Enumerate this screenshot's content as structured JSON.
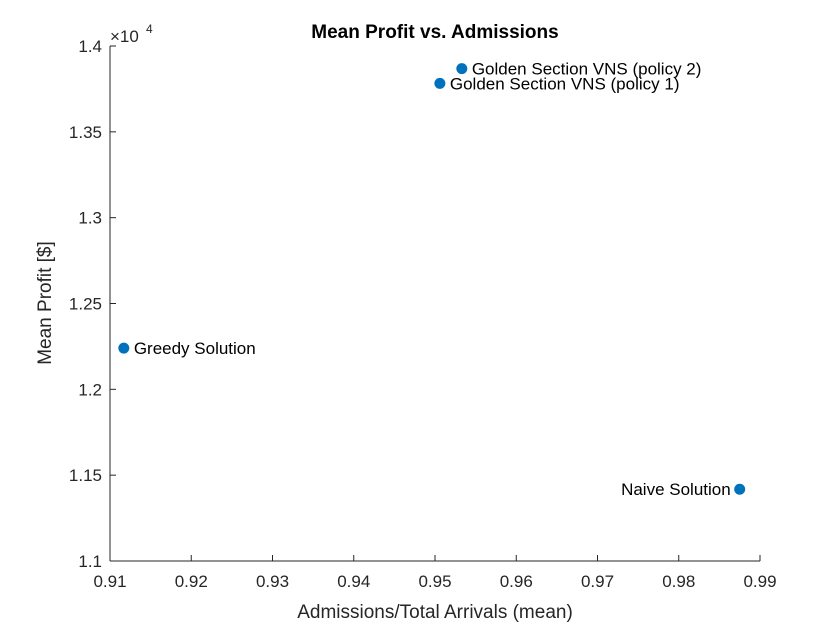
{
  "chart_data": {
    "type": "scatter",
    "title": "Mean Profit vs. Admissions",
    "xlabel": "Admissions/Total Arrivals (mean)",
    "ylabel": "Mean Profit [$]",
    "xlim": [
      0.91,
      0.99
    ],
    "ylim": [
      11000,
      14000
    ],
    "xticks": [
      0.91,
      0.92,
      0.93,
      0.94,
      0.95,
      0.96,
      0.97,
      0.98,
      0.99
    ],
    "xtick_labels": [
      "0.91",
      "0.92",
      "0.93",
      "0.94",
      "0.95",
      "0.96",
      "0.97",
      "0.98",
      "0.99"
    ],
    "yticks": [
      11000,
      11500,
      12000,
      12500,
      13000,
      13500,
      14000
    ],
    "ytick_labels": [
      "1.1",
      "1.15",
      "1.2",
      "1.25",
      "1.3",
      "1.35",
      "1.4"
    ],
    "y_exponent_base": "×10",
    "y_exponent_power": "4",
    "grid": false,
    "marker_color": "#0072BD",
    "points": [
      {
        "label": "Golden Section VNS (policy 2)",
        "x": 0.9533,
        "y": 13868,
        "label_side": "right"
      },
      {
        "label": "Golden Section VNS (policy 1)",
        "x": 0.9506,
        "y": 13782,
        "label_side": "right"
      },
      {
        "label": "Greedy Solution",
        "x": 0.9117,
        "y": 12240,
        "label_side": "right"
      },
      {
        "label": "Naive Solution",
        "x": 0.9875,
        "y": 11418,
        "label_side": "left"
      }
    ]
  }
}
